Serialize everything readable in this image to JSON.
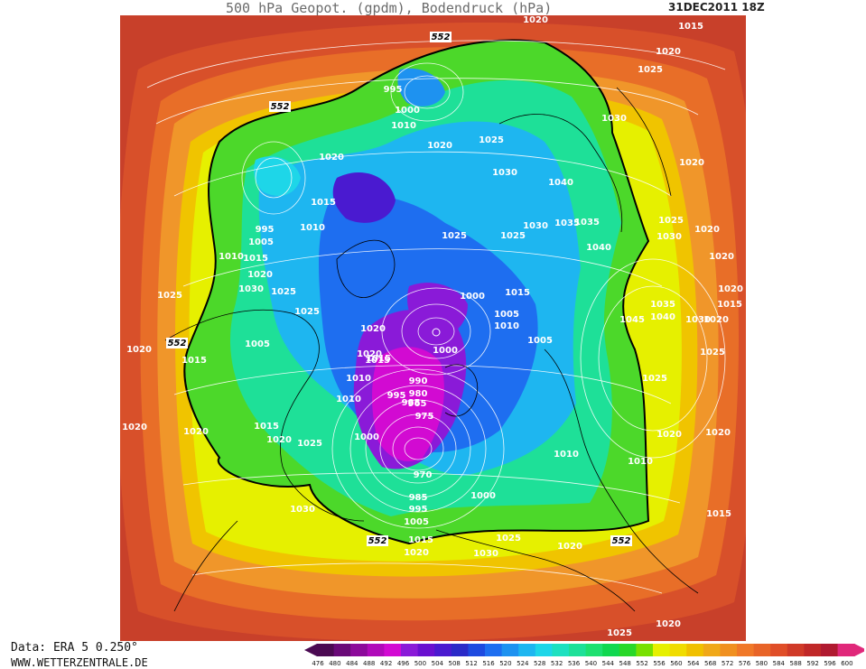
{
  "header": {
    "title": "500 hPa Geopot. (gpdm), Bodendruck (hPa)",
    "date": "31DEC2011 18Z"
  },
  "footer": {
    "data_source": "Data: ERA 5 0.250°",
    "website": "WWW.WETTERZENTRALE.DE"
  },
  "legend": {
    "levels": [
      "476",
      "480",
      "484",
      "488",
      "492",
      "496",
      "500",
      "504",
      "508",
      "512",
      "516",
      "520",
      "524",
      "528",
      "532",
      "536",
      "540",
      "544",
      "548",
      "552",
      "556",
      "560",
      "564",
      "568",
      "572",
      "576",
      "580",
      "584",
      "588",
      "592",
      "596",
      "600"
    ],
    "colors": [
      "#4b0a52",
      "#6a0a78",
      "#8c0a9a",
      "#b00ab9",
      "#d20ad2",
      "#8a1ad8",
      "#6a10d0",
      "#4a1ad0",
      "#2a2ac8",
      "#1e4ae0",
      "#1e6ef0",
      "#1e92f0",
      "#1eb6f0",
      "#1ed6e8",
      "#1ee0c0",
      "#1ee098",
      "#1ee070",
      "#10d850",
      "#28d828",
      "#78e000",
      "#e6f000",
      "#f0dc00",
      "#f0c000",
      "#f0a818",
      "#f09020",
      "#f07828",
      "#e86428",
      "#e04e28",
      "#d03a28",
      "#c02828",
      "#b01a30",
      "#e0287a"
    ]
  },
  "map": {
    "contour_labels": [
      {
        "text": "552",
        "kind": "geopot"
      },
      {
        "text": "552",
        "kind": "geopot"
      },
      {
        "text": "552",
        "kind": "geopot"
      },
      {
        "text": "552",
        "kind": "geopot"
      },
      {
        "text": "552",
        "kind": "geopot"
      },
      {
        "text": "1020"
      },
      {
        "text": "1015"
      },
      {
        "text": "1020"
      },
      {
        "text": "1025"
      },
      {
        "text": "995"
      },
      {
        "text": "1000"
      },
      {
        "text": "1010"
      },
      {
        "text": "1030"
      },
      {
        "text": "1020"
      },
      {
        "text": "1025"
      },
      {
        "text": "1020"
      },
      {
        "text": "1030"
      },
      {
        "text": "1040"
      },
      {
        "text": "1020"
      },
      {
        "text": "1015"
      },
      {
        "text": "1010"
      },
      {
        "text": "1025"
      },
      {
        "text": "1025"
      },
      {
        "text": "1030"
      },
      {
        "text": "1035"
      },
      {
        "text": "1035"
      },
      {
        "text": "1040"
      },
      {
        "text": "1025"
      },
      {
        "text": "1030"
      },
      {
        "text": "1020"
      },
      {
        "text": "995"
      },
      {
        "text": "1005"
      },
      {
        "text": "1010"
      },
      {
        "text": "1015"
      },
      {
        "text": "1020"
      },
      {
        "text": "1030"
      },
      {
        "text": "1025"
      },
      {
        "text": "1025"
      },
      {
        "text": "1020"
      },
      {
        "text": "1015"
      },
      {
        "text": "1020"
      },
      {
        "text": "1025"
      },
      {
        "text": "1015"
      },
      {
        "text": "1000"
      },
      {
        "text": "1005"
      },
      {
        "text": "1010"
      },
      {
        "text": "1020"
      },
      {
        "text": "1045"
      },
      {
        "text": "1035"
      },
      {
        "text": "1040"
      },
      {
        "text": "1030"
      },
      {
        "text": "1020"
      },
      {
        "text": "1025"
      },
      {
        "text": "1020"
      },
      {
        "text": "1005"
      },
      {
        "text": "1020"
      },
      {
        "text": "1015"
      },
      {
        "text": "1000"
      },
      {
        "text": "1015"
      },
      {
        "text": "1005"
      },
      {
        "text": "1010"
      },
      {
        "text": "1015"
      },
      {
        "text": "1010"
      },
      {
        "text": "990"
      },
      {
        "text": "980"
      },
      {
        "text": "965"
      },
      {
        "text": "995"
      },
      {
        "text": "985"
      },
      {
        "text": "975"
      },
      {
        "text": "1025"
      },
      {
        "text": "1020"
      },
      {
        "text": "1020"
      },
      {
        "text": "1015"
      },
      {
        "text": "1020"
      },
      {
        "text": "1025"
      },
      {
        "text": "1000"
      },
      {
        "text": "970"
      },
      {
        "text": "1010"
      },
      {
        "text": "1010"
      },
      {
        "text": "1020"
      },
      {
        "text": "1020"
      },
      {
        "text": "1030"
      },
      {
        "text": "985"
      },
      {
        "text": "995"
      },
      {
        "text": "1005"
      },
      {
        "text": "1015"
      },
      {
        "text": "1020"
      },
      {
        "text": "1030"
      },
      {
        "text": "1025"
      },
      {
        "text": "1020"
      },
      {
        "text": "1000"
      },
      {
        "text": "1015"
      },
      {
        "text": "1025"
      },
      {
        "text": "1020"
      }
    ]
  }
}
